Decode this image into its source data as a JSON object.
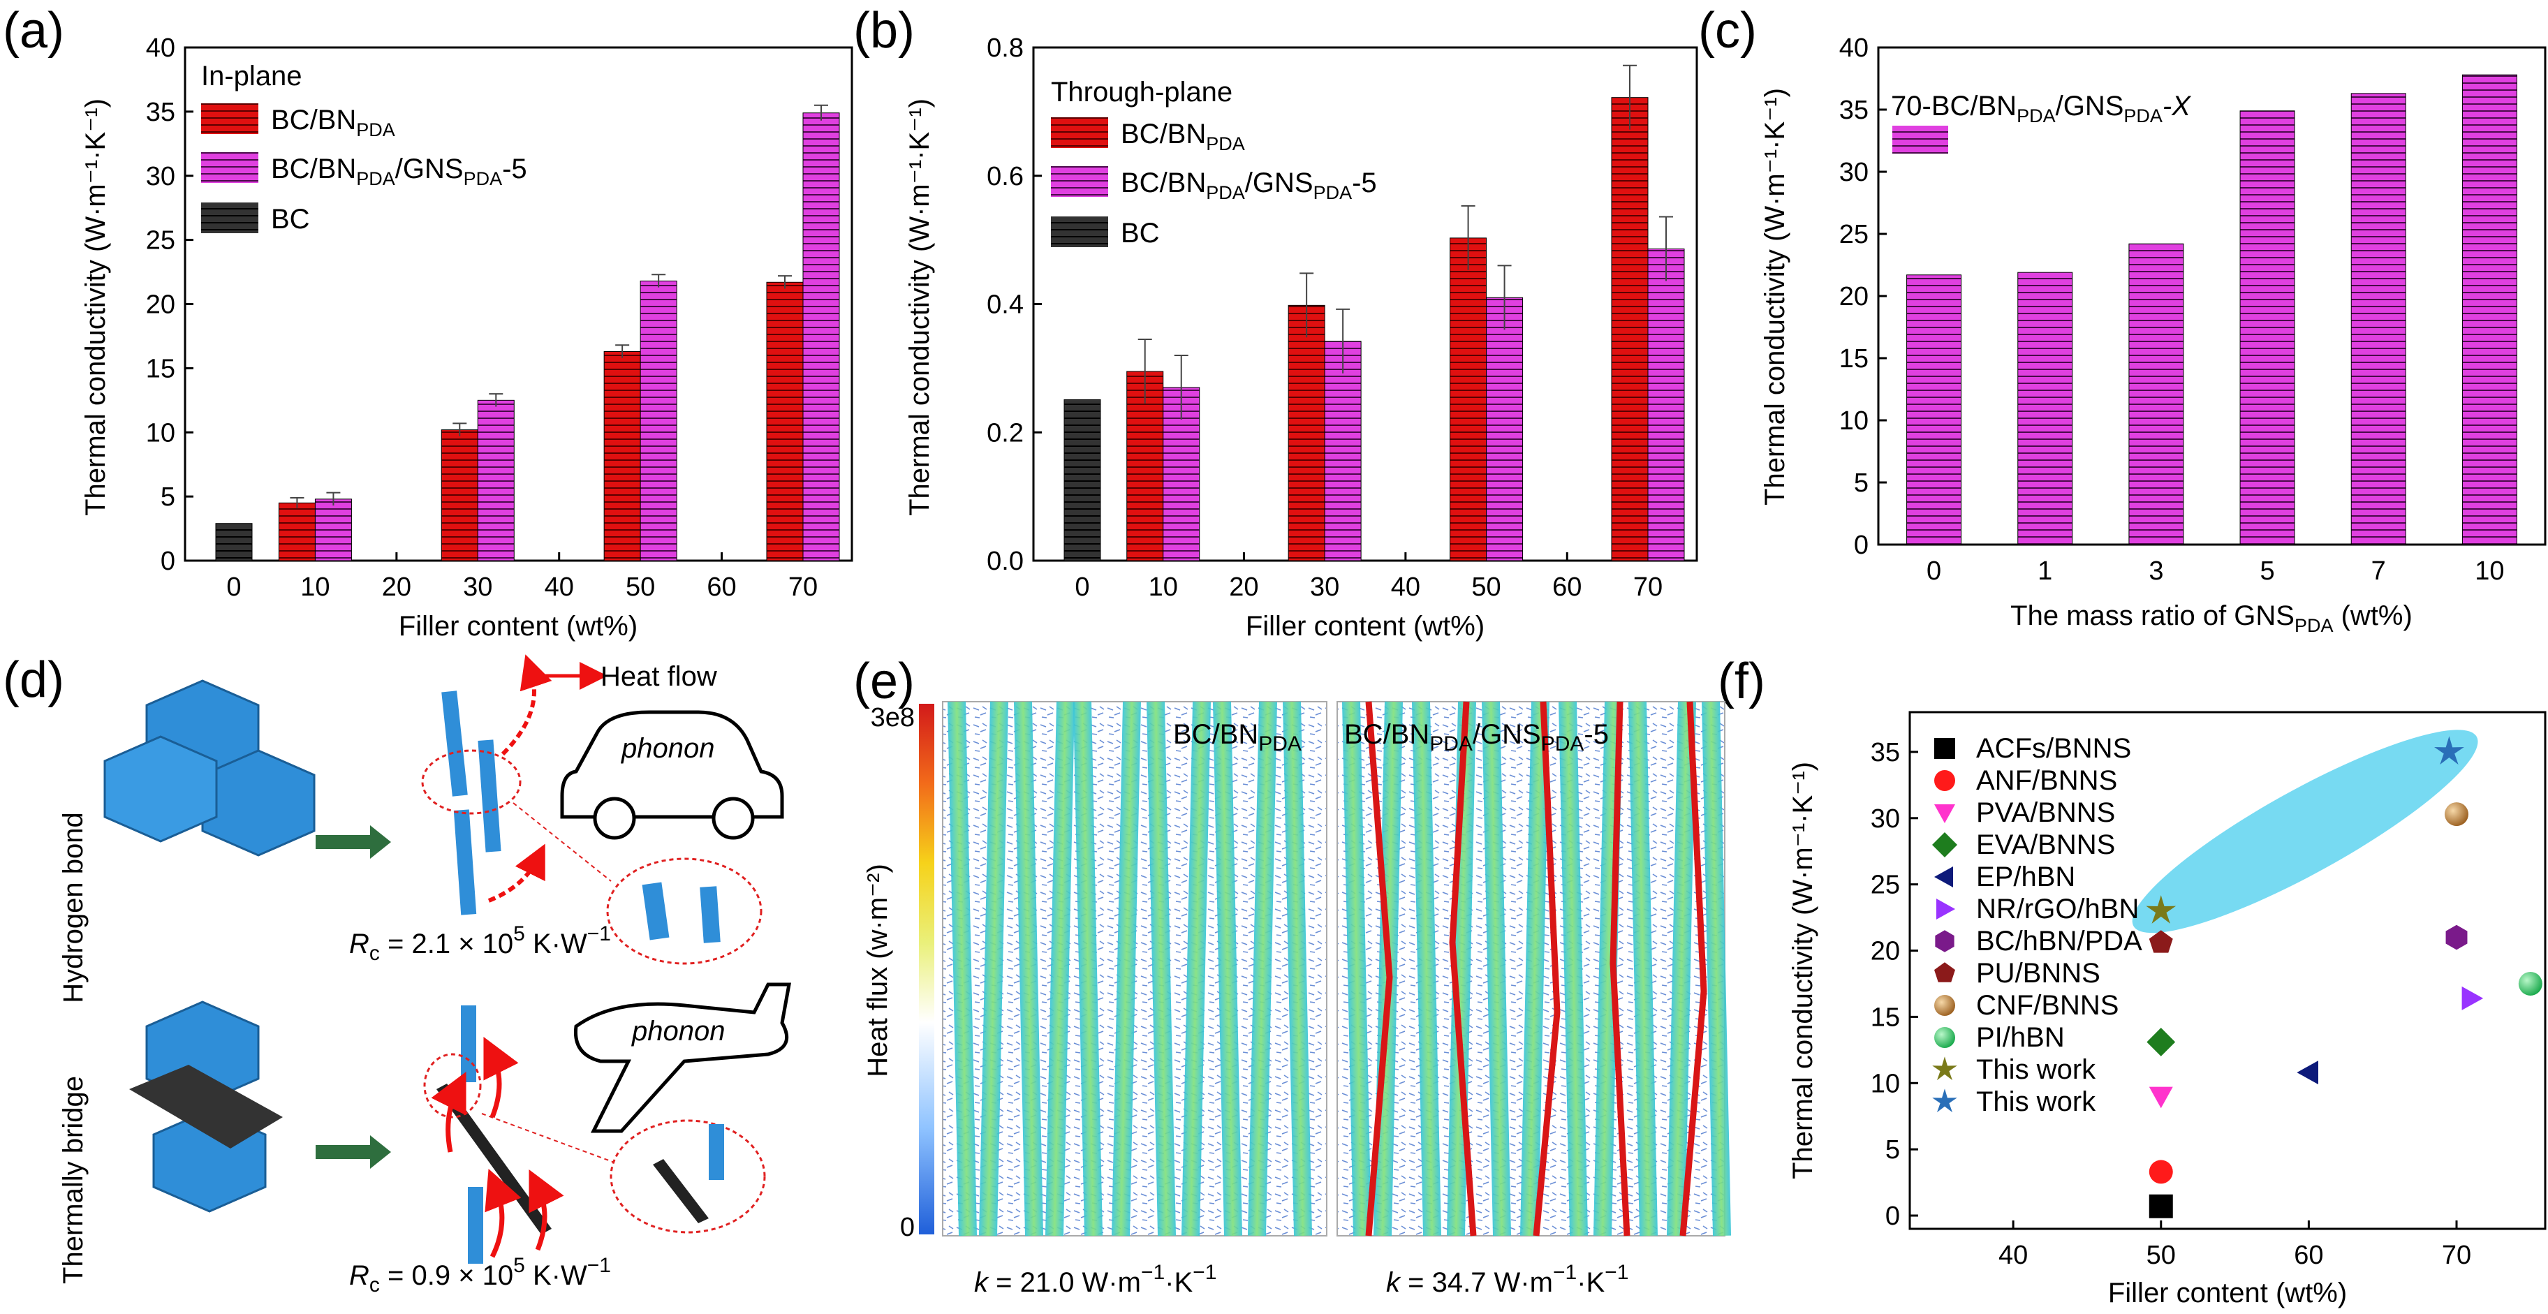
{
  "colors": {
    "red": "#e01010",
    "magenta": "#e040e0",
    "black": "#222222",
    "blue": "#3b93d6",
    "green_arrow": "#2e6e3e",
    "cyan_ellipse": "#5fd3f0"
  },
  "panels": {
    "a": "(a)",
    "b": "(b)",
    "c": "(c)",
    "d": "(d)",
    "e": "(e)",
    "f": "(f)"
  },
  "chart_data": [
    {
      "id": "a",
      "type": "bar",
      "title": "In-plane",
      "xlabel": "Filler content (wt%)",
      "ylabel": "Thermal conductivity (W·m⁻¹·K⁻¹)",
      "ylim": [
        0,
        40
      ],
      "yticks": [
        "0",
        "5",
        "10",
        "15",
        "20",
        "25",
        "30",
        "35",
        "40"
      ],
      "xticks": [
        "0",
        "10",
        "20",
        "30",
        "40",
        "50",
        "60",
        "70"
      ],
      "series": [
        {
          "name": "BC/BN",
          "sub": "PDA",
          "color": "#e01010",
          "x": [
            10,
            30,
            50,
            70
          ],
          "values": [
            4.5,
            10.2,
            16.3,
            21.7
          ],
          "err": [
            0.4,
            0.5,
            0.5,
            0.5
          ]
        },
        {
          "name": "BC/BN",
          "sub": "PDA",
          "suffix_a": "/GNS",
          "sub2": "PDA",
          "suffix_b": "-5",
          "color": "#e040e0",
          "x": [
            10,
            30,
            50,
            70
          ],
          "values": [
            4.8,
            12.5,
            21.8,
            34.9
          ],
          "err": [
            0.5,
            0.5,
            0.5,
            0.6
          ]
        },
        {
          "name": "BC",
          "color": "#222222",
          "x": [
            0
          ],
          "values": [
            2.9
          ],
          "err": [
            0
          ]
        }
      ]
    },
    {
      "id": "b",
      "type": "bar",
      "title": "Through-plane",
      "xlabel": "Filler content (wt%)",
      "ylabel": "Thermal conductivity (W·m⁻¹·K⁻¹)",
      "ylim": [
        0,
        0.8
      ],
      "yticks": [
        "0.0",
        "0.2",
        "0.4",
        "0.6",
        "0.8"
      ],
      "xticks": [
        "0",
        "10",
        "20",
        "30",
        "40",
        "50",
        "60",
        "70"
      ],
      "series": [
        {
          "name": "BC/BN",
          "sub": "PDA",
          "color": "#e01010",
          "x": [
            10,
            30,
            50,
            70
          ],
          "values": [
            0.295,
            0.398,
            0.503,
            0.722
          ],
          "err": [
            0.05,
            0.05,
            0.05,
            0.05
          ]
        },
        {
          "name": "BC/BN",
          "sub": "PDA",
          "suffix_a": "/GNS",
          "sub2": "PDA",
          "suffix_b": "-5",
          "color": "#e040e0",
          "x": [
            10,
            30,
            50,
            70
          ],
          "values": [
            0.27,
            0.342,
            0.41,
            0.486
          ],
          "err": [
            0.05,
            0.05,
            0.05,
            0.05
          ]
        },
        {
          "name": "BC",
          "color": "#222222",
          "x": [
            0
          ],
          "values": [
            0.251
          ],
          "err": [
            0
          ]
        }
      ]
    },
    {
      "id": "c",
      "type": "bar",
      "title": "70-BC/BN",
      "title_sub": "PDA",
      "title_mid": "/GNS",
      "title_sub2": "PDA",
      "title_end": "-X",
      "xlabel": "The mass ratio of GNS",
      "xlabel_sub": "PDA",
      "xlabel_end": " (wt%)",
      "ylabel": "Thermal conductivity (W·m⁻¹·K⁻¹)",
      "ylim": [
        0,
        40
      ],
      "yticks": [
        "0",
        "5",
        "10",
        "15",
        "20",
        "25",
        "30",
        "35",
        "40"
      ],
      "categories": [
        "0",
        "1",
        "3",
        "5",
        "7",
        "10"
      ],
      "values": [
        21.7,
        21.9,
        24.2,
        34.9,
        36.3,
        37.8
      ],
      "color": "#e040e0"
    },
    {
      "id": "f",
      "type": "scatter",
      "xlabel": "Filler content (wt%)",
      "ylabel": "Thermal conductivity (W·m⁻¹·K⁻¹)",
      "xlim": [
        33,
        76
      ],
      "ylim": [
        -1,
        38
      ],
      "xticks": [
        "40",
        "50",
        "60",
        "70"
      ],
      "xtick_vals": [
        40,
        50,
        60,
        70
      ],
      "yticks": [
        "0",
        "5",
        "10",
        "15",
        "20",
        "25",
        "30",
        "35"
      ],
      "series": [
        {
          "name": "ACFs/BNNS",
          "marker": "square",
          "color": "#000000",
          "points": [
            [
              50,
              0.7
            ]
          ]
        },
        {
          "name": "ANF/BNNS",
          "marker": "circle",
          "color": "#ff1a1a",
          "points": [
            [
              50,
              3.3
            ]
          ]
        },
        {
          "name": "PVA/BNNS",
          "marker": "tri-down",
          "color": "#ff33cc",
          "points": [
            [
              50,
              9.0
            ]
          ]
        },
        {
          "name": "EVA/BNNS",
          "marker": "diamond",
          "color": "#1e7d1e",
          "points": [
            [
              50,
              13.1
            ]
          ]
        },
        {
          "name": "EP/hBN",
          "marker": "tri-left",
          "color": "#0d1a7a",
          "points": [
            [
              60,
              10.8
            ]
          ]
        },
        {
          "name": "NR/rGO/hBN",
          "marker": "tri-right",
          "color": "#9933ff",
          "points": [
            [
              71,
              16.4
            ]
          ]
        },
        {
          "name": "BC/hBN/PDA",
          "marker": "hexagon",
          "color": "#7a1a8a",
          "points": [
            [
              70,
              21.0
            ]
          ]
        },
        {
          "name": "PU/BNNS",
          "marker": "pentagon",
          "color": "#8b1a1a",
          "points": [
            [
              50,
              20.6
            ]
          ]
        },
        {
          "name": "CNF/BNNS",
          "marker": "sphere",
          "color": "#b8762a",
          "points": [
            [
              70,
              30.3
            ]
          ]
        },
        {
          "name": "PI/hBN",
          "marker": "sphere",
          "color": "#22c55e",
          "points": [
            [
              75,
              17.5
            ]
          ]
        },
        {
          "name": "This work",
          "marker": "star",
          "color": "#7a7a1a",
          "points": [
            [
              50,
              23.0
            ]
          ]
        },
        {
          "name": "This work",
          "marker": "star",
          "color": "#2a6fb8",
          "points": [
            [
              69.5,
              35.0
            ]
          ]
        }
      ]
    }
  ],
  "schematic_d": {
    "heat_flow": "Heat flow",
    "phonon_car": "phonon",
    "phonon_plane": "phonon",
    "hydrogen_bond": "Hydrogen bond",
    "thermally_bridge": "Thermally bridge",
    "rc_top_lead": "R",
    "rc_top_sub": "c",
    "rc_top_val": " = 2.1 × 10",
    "rc_top_exp": "5",
    "rc_top_unit": " K·W",
    "rc_top_unit_exp": "−1",
    "rc_bot_lead": "R",
    "rc_bot_sub": "c",
    "rc_bot_val": " = 0.9 × 10",
    "rc_bot_exp": "5",
    "rc_bot_unit": " K·W",
    "rc_bot_unit_exp": "−1"
  },
  "heatmap_e": {
    "colorbar_max": "3e8",
    "colorbar_min": "0",
    "colorbar_label": "Heat flux (w·m⁻²)",
    "left_title": "BC/BN",
    "left_title_sub": "PDA",
    "right_title_a": "BC/BN",
    "right_title_sub": "PDA",
    "right_title_b": "/GNS",
    "right_title_sub2": "PDA",
    "right_title_c": "-5",
    "k_left_var": "k",
    "k_left": " = 21.0 W·m",
    "k_left_e1": "−1",
    "k_left_mid": "·K",
    "k_left_e2": "−1",
    "k_right_var": "k",
    "k_right": " = 34.7 W·m",
    "k_right_e1": "−1",
    "k_right_mid": "·K",
    "k_right_e2": "−1"
  }
}
